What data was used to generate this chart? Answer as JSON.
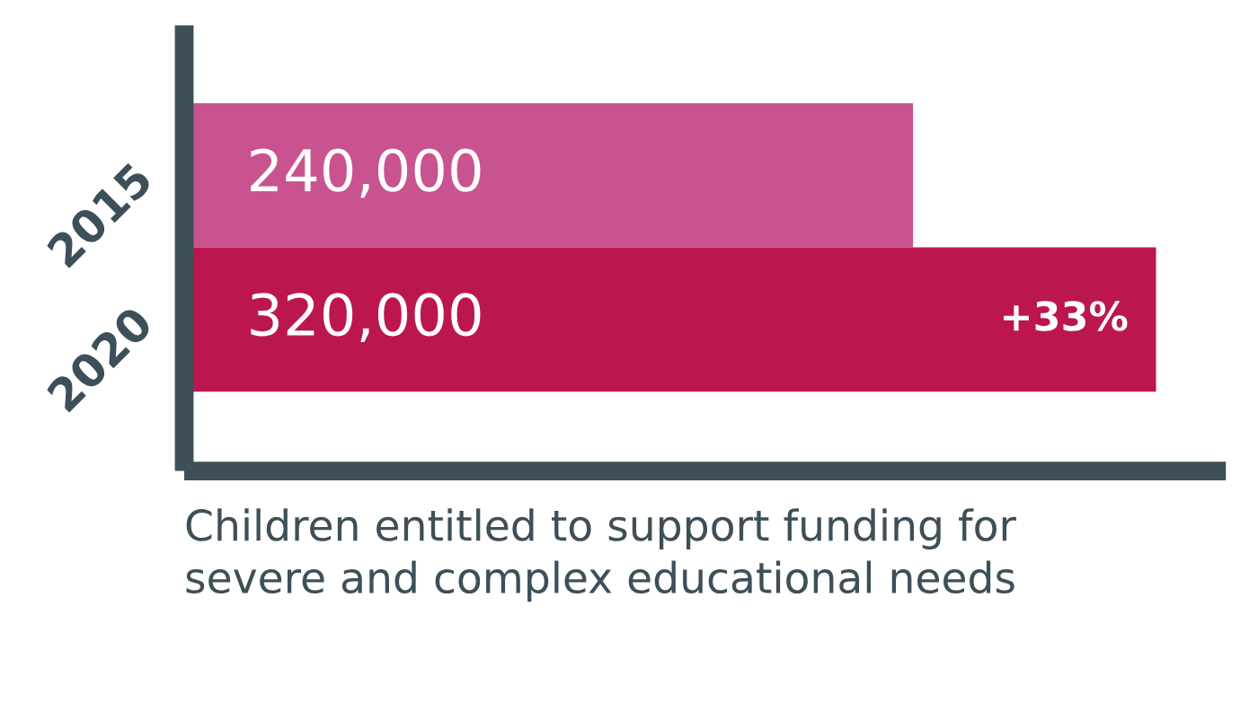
{
  "chart_data": {
    "type": "bar",
    "orientation": "horizontal",
    "categories": [
      "2015",
      "2020"
    ],
    "values": [
      240000,
      320000
    ],
    "colors": [
      "#c9538f",
      "#bc1650"
    ],
    "value_labels": [
      "240,000",
      "320,000"
    ],
    "xlim": [
      0,
      343000
    ],
    "tick_labels": "y",
    "xlabel": "Children entitled to support funding for\nsevere and complex educational needs",
    "annotations": [
      {
        "text": "+33%",
        "x": 320000,
        "y": "2020"
      }
    ]
  }
}
